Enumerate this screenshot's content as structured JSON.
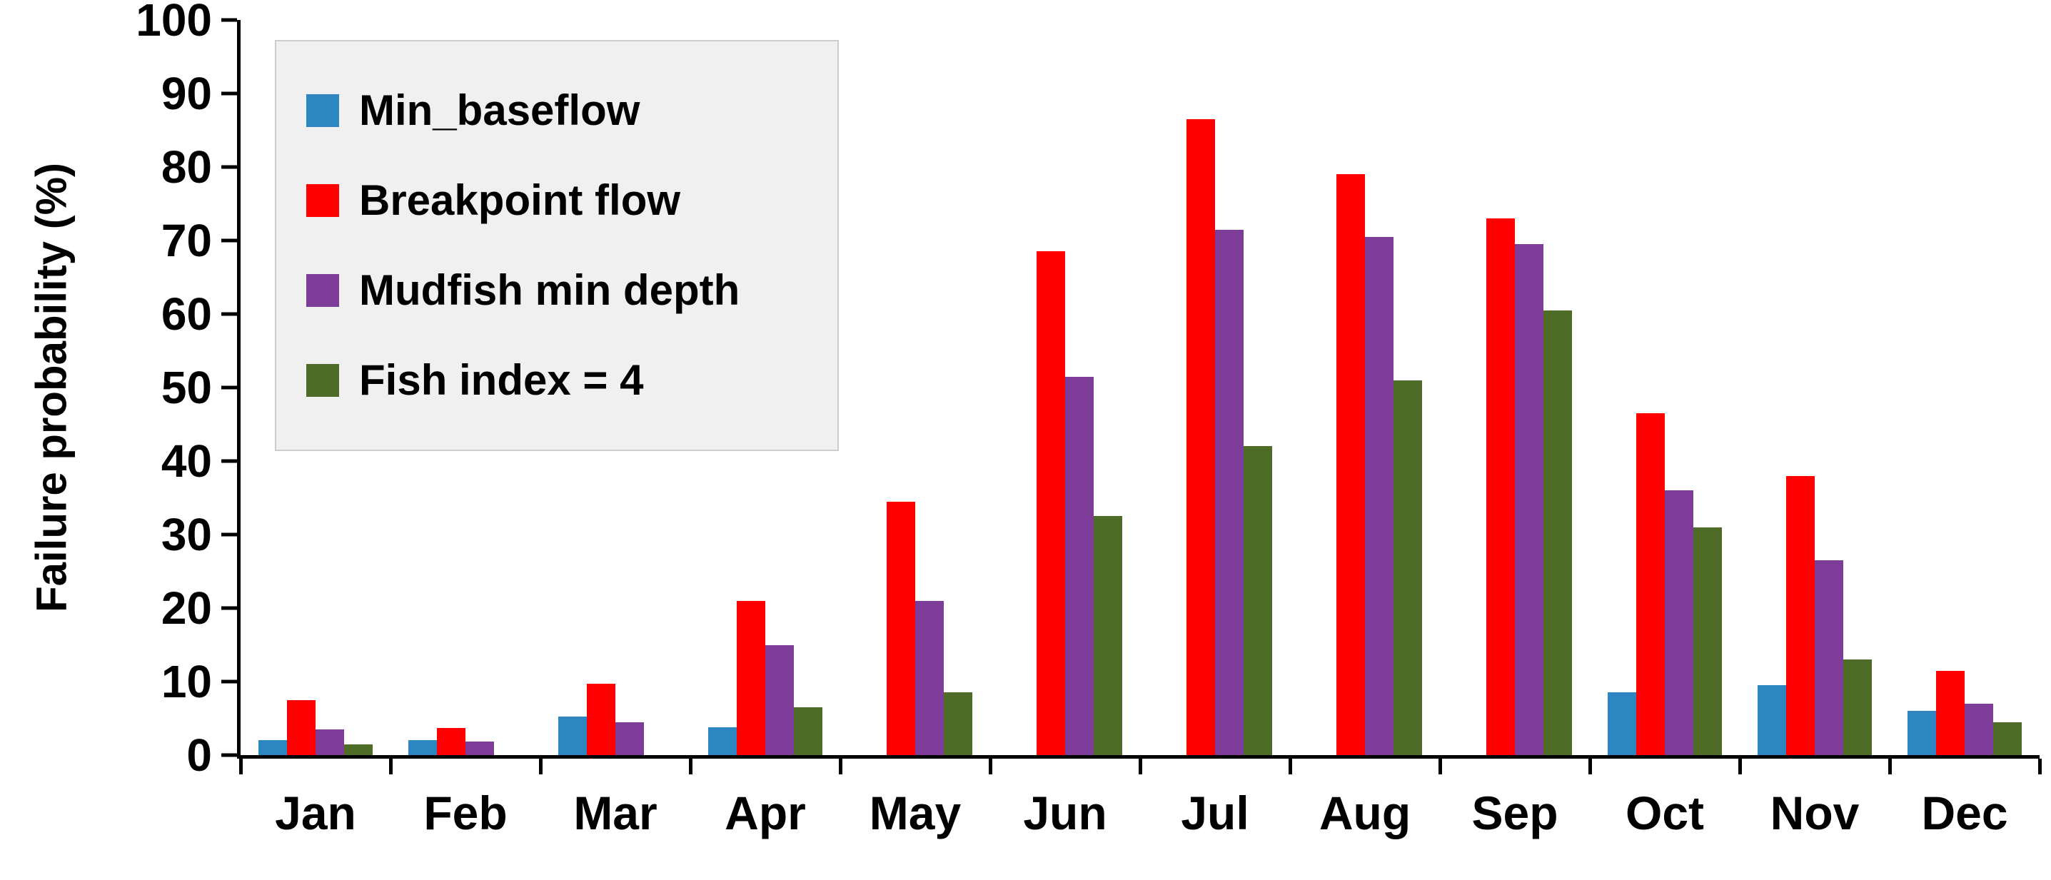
{
  "chart_data": {
    "type": "bar",
    "title": "",
    "xlabel": "",
    "ylabel": "Failure probability (%)",
    "ylim": [
      0,
      100
    ],
    "ytick_step": 10,
    "yticks": [
      0,
      10,
      20,
      30,
      40,
      50,
      60,
      70,
      80,
      90,
      100
    ],
    "grid": false,
    "legend_position": "top-left",
    "categories": [
      "Jan",
      "Feb",
      "Mar",
      "Apr",
      "May",
      "Jun",
      "Jul",
      "Aug",
      "Sep",
      "Oct",
      "Nov",
      "Dec"
    ],
    "series": [
      {
        "name": "Min_baseflow",
        "color": "#2E86C1",
        "values": [
          2,
          2,
          5.2,
          3.8,
          0,
          0,
          0,
          0,
          0,
          8.5,
          9.5,
          6
        ]
      },
      {
        "name": "Breakpoint flow",
        "color": "#FF0000",
        "values": [
          7.5,
          3.7,
          9.7,
          21,
          34.5,
          68.5,
          86.5,
          79,
          73,
          46.5,
          38,
          11.5
        ]
      },
      {
        "name": "Mudfish min depth",
        "color": "#7D3C98",
        "values": [
          3.5,
          1.8,
          4.5,
          15,
          21,
          51.5,
          71.5,
          70.5,
          69.5,
          36,
          26.5,
          7
        ]
      },
      {
        "name": "Fish index = 4",
        "color": "#4F6B28",
        "values": [
          1.5,
          0,
          0,
          6.5,
          8.5,
          32.5,
          42,
          51,
          60.5,
          31,
          13,
          4.5
        ]
      }
    ]
  }
}
